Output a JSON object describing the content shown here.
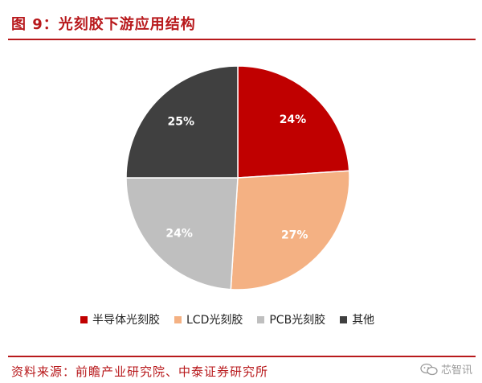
{
  "header": {
    "title": "图 9：光刻胶下游应用结构"
  },
  "chart_data": {
    "type": "pie",
    "title": "图 9：光刻胶下游应用结构",
    "slices": [
      {
        "label": "半导体光刻胶",
        "value": 24,
        "display": "24%",
        "color": "#c00000"
      },
      {
        "label": "LCD光刻胶",
        "value": 27,
        "display": "27%",
        "color": "#f4b183"
      },
      {
        "label": "PCB光刻胶",
        "value": 24,
        "display": "24%",
        "color": "#bfbfbf"
      },
      {
        "label": "其他",
        "value": 25,
        "display": "25%",
        "color": "#404040"
      }
    ],
    "start_angle_deg": 0,
    "direction": "clockwise",
    "legend_position": "bottom"
  },
  "footer": {
    "source": "资料来源：前瞻产业研究院、中泰证券研究所",
    "watermark": "芯智讯",
    "watermark_icon": "wechat-icon"
  }
}
